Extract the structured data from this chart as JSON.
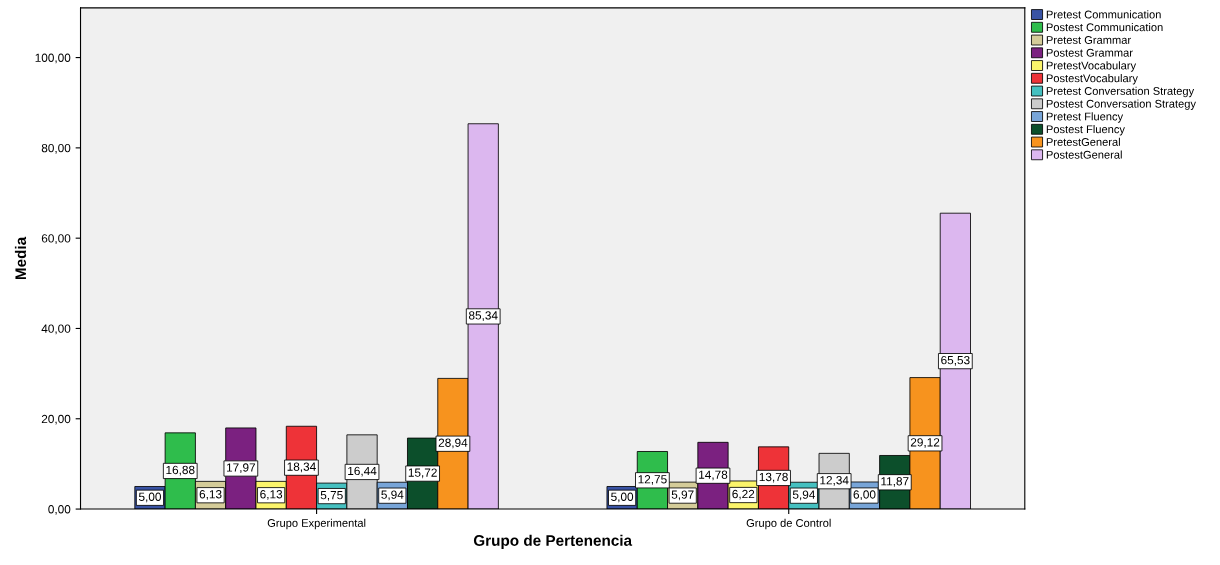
{
  "chart_data": {
    "type": "bar",
    "xlabel": "Grupo de Pertenencia",
    "ylabel": "Media",
    "categories": [
      "Grupo Experimental",
      "Grupo de Control"
    ],
    "ylim": [
      0,
      111
    ],
    "yticks": [
      {
        "value": 0,
        "label": "0,00"
      },
      {
        "value": 20,
        "label": "20,00"
      },
      {
        "value": 40,
        "label": "40,00"
      },
      {
        "value": 60,
        "label": "60,00"
      },
      {
        "value": 80,
        "label": "80,00"
      },
      {
        "value": 100,
        "label": "100,00"
      }
    ],
    "grid": false,
    "legend": "top right",
    "series": [
      {
        "name": "Pretest Communication",
        "color": "#3953a4",
        "values": [
          5.0,
          5.0
        ],
        "value_labels": [
          "5,00",
          "5,00"
        ]
      },
      {
        "name": "Postest Communication",
        "color": "#2fbd4c",
        "values": [
          16.88,
          12.75
        ],
        "value_labels": [
          "16,88",
          "12,75"
        ]
      },
      {
        "name": "Pretest Grammar",
        "color": "#d4cc99",
        "values": [
          6.13,
          5.97
        ],
        "value_labels": [
          "6,13",
          "5,97"
        ]
      },
      {
        "name": "Postest Grammar",
        "color": "#7b2180",
        "values": [
          17.97,
          14.78
        ],
        "value_labels": [
          "17,97",
          "14,78"
        ]
      },
      {
        "name": "PretestVocabulary",
        "color": "#fbf46b",
        "values": [
          6.13,
          6.22
        ],
        "value_labels": [
          "6,13",
          "6,22"
        ]
      },
      {
        "name": "PostestVocabulary",
        "color": "#ee3338",
        "values": [
          18.34,
          13.78
        ],
        "value_labels": [
          "18,34",
          "13,78"
        ]
      },
      {
        "name": "Pretest Conversation Strategy",
        "color": "#45c0c0",
        "values": [
          5.75,
          5.94
        ],
        "value_labels": [
          "5,75",
          "5,94"
        ]
      },
      {
        "name": "Postest Conversation Strategy",
        "color": "#cccccc",
        "values": [
          16.44,
          12.34
        ],
        "value_labels": [
          "16,44",
          "12,34"
        ]
      },
      {
        "name": "Pretest Fluency",
        "color": "#78a5d8",
        "values": [
          5.94,
          6.0
        ],
        "value_labels": [
          "5,94",
          "6,00"
        ]
      },
      {
        "name": "Postest Fluency",
        "color": "#0c4f2b",
        "values": [
          15.72,
          11.87
        ],
        "value_labels": [
          "15,72",
          "11,87"
        ]
      },
      {
        "name": "PretestGeneral",
        "color": "#f7931e",
        "values": [
          28.94,
          29.12
        ],
        "value_labels": [
          "28,94",
          "29,12"
        ]
      },
      {
        "name": "PostestGeneral",
        "color": "#dcb7ef",
        "values": [
          85.34,
          65.53
        ],
        "value_labels": [
          "85,34",
          "65,53"
        ]
      }
    ]
  }
}
